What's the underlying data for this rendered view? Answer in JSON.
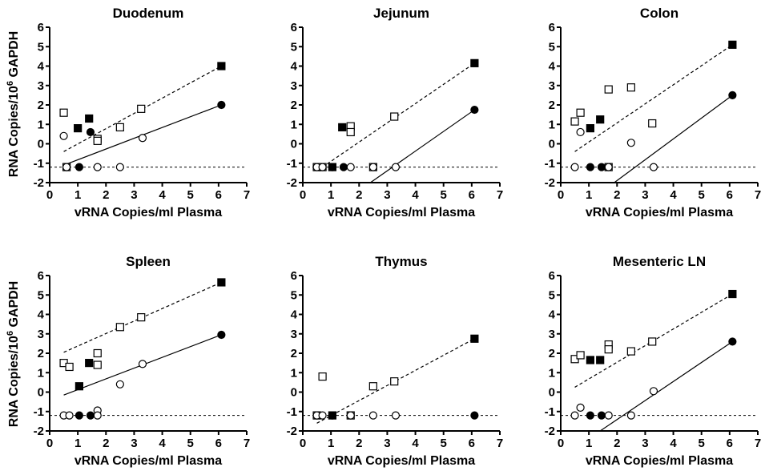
{
  "figure": {
    "ylabel_main": "RNA Copies/10",
    "ylabel_sup": "6",
    "ylabel_tail": " GAPDH"
  },
  "chart_data": [
    {
      "type": "scatter",
      "title": "Duodenum",
      "xlabel": "vRNA Copies/ml Plasma",
      "xlim": [
        0,
        7
      ],
      "ylim": [
        -2,
        6
      ],
      "xticks": [
        0,
        1,
        2,
        3,
        4,
        5,
        6,
        7
      ],
      "yticks": [
        -2,
        -1,
        0,
        1,
        2,
        3,
        4,
        5,
        6
      ],
      "series": [
        {
          "marker": "open-square",
          "points": [
            [
              0.5,
              1.6
            ],
            [
              0.6,
              -1.2
            ],
            [
              1.7,
              0.25
            ],
            [
              1.7,
              0.15
            ],
            [
              2.5,
              0.85
            ],
            [
              3.25,
              1.8
            ]
          ]
        },
        {
          "marker": "filled-square",
          "points": [
            [
              1.0,
              0.8
            ],
            [
              1.4,
              1.3
            ],
            [
              6.1,
              4.0
            ]
          ]
        },
        {
          "marker": "open-circle",
          "points": [
            [
              0.5,
              0.4
            ],
            [
              0.6,
              -1.2
            ],
            [
              1.7,
              -1.2
            ],
            [
              2.5,
              -1.2
            ],
            [
              3.3,
              0.3
            ]
          ]
        },
        {
          "marker": "filled-circle",
          "points": [
            [
              1.05,
              -1.2
            ],
            [
              1.45,
              0.6
            ],
            [
              6.1,
              2.0
            ]
          ]
        }
      ],
      "fits": [
        {
          "style": "dashed",
          "from": [
            0.5,
            -0.4
          ],
          "to": [
            6.1,
            4.0
          ]
        },
        {
          "style": "solid",
          "from": [
            0.5,
            -1.1
          ],
          "to": [
            6.1,
            2.0
          ]
        }
      ],
      "threshold": -1.2
    },
    {
      "type": "scatter",
      "title": "Jejunum",
      "xlabel": "vRNA Copies/ml Plasma",
      "xlim": [
        0,
        7
      ],
      "ylim": [
        -2,
        6
      ],
      "xticks": [
        0,
        1,
        2,
        3,
        4,
        5,
        6,
        7
      ],
      "yticks": [
        -2,
        -1,
        0,
        1,
        2,
        3,
        4,
        5,
        6
      ],
      "series": [
        {
          "marker": "open-square",
          "points": [
            [
              0.5,
              -1.2
            ],
            [
              0.7,
              -1.2
            ],
            [
              1.7,
              0.9
            ],
            [
              1.7,
              0.6
            ],
            [
              2.5,
              -1.2
            ],
            [
              3.25,
              1.4
            ]
          ]
        },
        {
          "marker": "filled-square",
          "points": [
            [
              1.05,
              -1.2
            ],
            [
              1.4,
              0.85
            ],
            [
              6.1,
              4.15
            ]
          ]
        },
        {
          "marker": "open-circle",
          "points": [
            [
              0.5,
              -1.2
            ],
            [
              0.7,
              -1.2
            ],
            [
              1.7,
              -1.2
            ],
            [
              2.5,
              -1.2
            ],
            [
              3.3,
              -1.2
            ]
          ]
        },
        {
          "marker": "filled-circle",
          "points": [
            [
              1.05,
              -1.2
            ],
            [
              1.45,
              -1.2
            ],
            [
              6.1,
              1.75
            ]
          ]
        }
      ],
      "fits": [
        {
          "style": "dashed",
          "from": [
            0.7,
            -1.2
          ],
          "to": [
            6.1,
            4.15
          ]
        },
        {
          "style": "solid",
          "from": [
            2.4,
            -2.0
          ],
          "to": [
            6.1,
            1.75
          ]
        }
      ],
      "threshold": -1.2
    },
    {
      "type": "scatter",
      "title": "Colon",
      "xlabel": "vRNA Copies/ml Plasma",
      "xlim": [
        0,
        7
      ],
      "ylim": [
        -2,
        6
      ],
      "xticks": [
        0,
        1,
        2,
        3,
        4,
        5,
        6,
        7
      ],
      "yticks": [
        -2,
        -1,
        0,
        1,
        2,
        3,
        4,
        5,
        6
      ],
      "series": [
        {
          "marker": "open-square",
          "points": [
            [
              0.5,
              1.15
            ],
            [
              0.7,
              1.6
            ],
            [
              1.7,
              2.8
            ],
            [
              1.7,
              -1.2
            ],
            [
              2.5,
              2.9
            ],
            [
              3.25,
              1.05
            ]
          ]
        },
        {
          "marker": "filled-square",
          "points": [
            [
              1.05,
              0.8
            ],
            [
              1.4,
              1.25
            ],
            [
              6.1,
              5.1
            ]
          ]
        },
        {
          "marker": "open-circle",
          "points": [
            [
              0.5,
              -1.2
            ],
            [
              0.7,
              0.6
            ],
            [
              1.7,
              -1.2
            ],
            [
              2.5,
              0.05
            ],
            [
              3.3,
              -1.2
            ]
          ]
        },
        {
          "marker": "filled-circle",
          "points": [
            [
              1.05,
              -1.2
            ],
            [
              1.45,
              -1.2
            ],
            [
              6.1,
              2.5
            ]
          ]
        }
      ],
      "fits": [
        {
          "style": "dashed",
          "from": [
            0.5,
            -0.4
          ],
          "to": [
            6.1,
            5.1
          ]
        },
        {
          "style": "solid",
          "from": [
            1.9,
            -2.0
          ],
          "to": [
            6.1,
            2.5
          ]
        }
      ],
      "threshold": -1.2
    },
    {
      "type": "scatter",
      "title": "Spleen",
      "xlabel": "vRNA Copies/ml Plasma",
      "xlim": [
        0,
        7
      ],
      "ylim": [
        -2,
        6
      ],
      "xticks": [
        0,
        1,
        2,
        3,
        4,
        5,
        6,
        7
      ],
      "yticks": [
        -2,
        -1,
        0,
        1,
        2,
        3,
        4,
        5,
        6
      ],
      "series": [
        {
          "marker": "open-square",
          "points": [
            [
              0.5,
              1.5
            ],
            [
              0.7,
              1.3
            ],
            [
              1.7,
              2.0
            ],
            [
              1.7,
              1.4
            ],
            [
              2.5,
              3.35
            ],
            [
              3.25,
              3.85
            ]
          ]
        },
        {
          "marker": "filled-square",
          "points": [
            [
              1.05,
              0.3
            ],
            [
              1.4,
              1.5
            ],
            [
              6.1,
              5.65
            ]
          ]
        },
        {
          "marker": "open-circle",
          "points": [
            [
              0.5,
              -1.2
            ],
            [
              0.7,
              -1.2
            ],
            [
              1.7,
              -0.95
            ],
            [
              1.7,
              -1.2
            ],
            [
              2.5,
              0.4
            ],
            [
              3.3,
              1.45
            ]
          ]
        },
        {
          "marker": "filled-circle",
          "points": [
            [
              1.05,
              -1.2
            ],
            [
              1.45,
              -1.2
            ],
            [
              6.1,
              2.95
            ]
          ]
        }
      ],
      "fits": [
        {
          "style": "dashed",
          "from": [
            0.5,
            2.05
          ],
          "to": [
            6.1,
            5.65
          ]
        },
        {
          "style": "solid",
          "from": [
            0.5,
            -0.15
          ],
          "to": [
            6.1,
            2.95
          ]
        }
      ],
      "threshold": -1.2
    },
    {
      "type": "scatter",
      "title": "Thymus",
      "xlabel": "vRNA Copies/ml Plasma",
      "xlim": [
        0,
        7
      ],
      "ylim": [
        -2,
        6
      ],
      "xticks": [
        0,
        1,
        2,
        3,
        4,
        5,
        6,
        7
      ],
      "yticks": [
        -2,
        -1,
        0,
        1,
        2,
        3,
        4,
        5,
        6
      ],
      "series": [
        {
          "marker": "open-square",
          "points": [
            [
              0.5,
              -1.2
            ],
            [
              0.7,
              0.8
            ],
            [
              1.7,
              -1.2
            ],
            [
              2.5,
              0.3
            ],
            [
              3.25,
              0.55
            ]
          ]
        },
        {
          "marker": "filled-square",
          "points": [
            [
              1.05,
              -1.2
            ],
            [
              6.1,
              2.75
            ]
          ]
        },
        {
          "marker": "open-circle",
          "points": [
            [
              0.5,
              -1.2
            ],
            [
              0.7,
              -1.2
            ],
            [
              1.7,
              -1.2
            ],
            [
              2.5,
              -1.2
            ],
            [
              3.3,
              -1.2
            ]
          ]
        },
        {
          "marker": "filled-circle",
          "points": [
            [
              1.05,
              -1.2
            ],
            [
              6.1,
              -1.2
            ]
          ]
        }
      ],
      "fits": [
        {
          "style": "dashed",
          "from": [
            0.5,
            -1.6
          ],
          "to": [
            6.1,
            2.75
          ]
        }
      ],
      "threshold": -1.2
    },
    {
      "type": "scatter",
      "title": "Mesenteric LN",
      "xlabel": "vRNA Copies/ml Plasma",
      "xlim": [
        0,
        7
      ],
      "ylim": [
        -2,
        6
      ],
      "xticks": [
        0,
        1,
        2,
        3,
        4,
        5,
        6,
        7
      ],
      "yticks": [
        -2,
        -1,
        0,
        1,
        2,
        3,
        4,
        5,
        6
      ],
      "series": [
        {
          "marker": "open-square",
          "points": [
            [
              0.5,
              1.7
            ],
            [
              0.7,
              1.9
            ],
            [
              1.7,
              2.45
            ],
            [
              1.7,
              2.2
            ],
            [
              2.5,
              2.1
            ],
            [
              3.25,
              2.6
            ]
          ]
        },
        {
          "marker": "filled-square",
          "points": [
            [
              1.05,
              1.65
            ],
            [
              1.4,
              1.65
            ],
            [
              6.1,
              5.05
            ]
          ]
        },
        {
          "marker": "open-circle",
          "points": [
            [
              0.5,
              -1.2
            ],
            [
              0.7,
              -0.8
            ],
            [
              1.7,
              -1.2
            ],
            [
              2.5,
              -1.2
            ],
            [
              3.3,
              0.05
            ]
          ]
        },
        {
          "marker": "filled-circle",
          "points": [
            [
              1.05,
              -1.2
            ],
            [
              1.45,
              -1.2
            ],
            [
              6.1,
              2.6
            ]
          ]
        }
      ],
      "fits": [
        {
          "style": "dashed",
          "from": [
            0.5,
            0.25
          ],
          "to": [
            6.1,
            5.05
          ]
        },
        {
          "style": "solid",
          "from": [
            1.4,
            -2.0
          ],
          "to": [
            6.1,
            2.6
          ]
        }
      ],
      "threshold": -1.2
    }
  ]
}
